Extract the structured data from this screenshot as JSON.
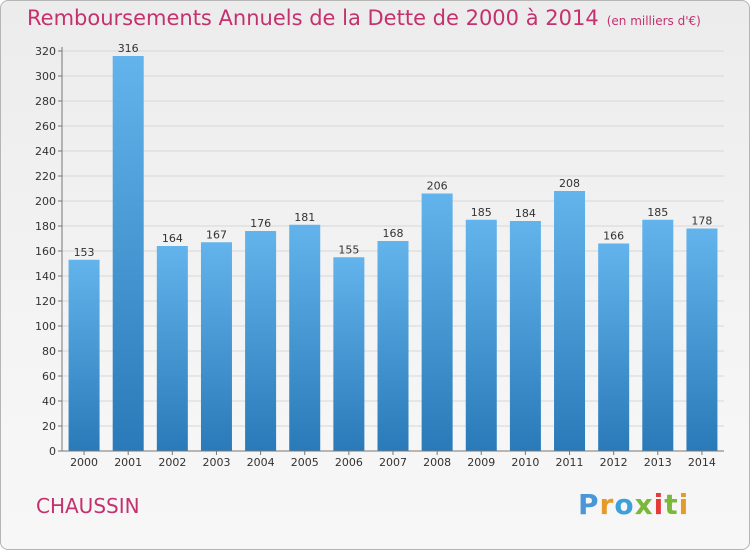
{
  "chart_data": {
    "type": "bar",
    "title": "Remboursements Annuels de la Dette de 2000 à 2014",
    "unit_note": "(en milliers d'€)",
    "categories": [
      "2000",
      "2001",
      "2002",
      "2003",
      "2004",
      "2005",
      "2006",
      "2007",
      "2008",
      "2009",
      "2010",
      "2011",
      "2012",
      "2013",
      "2014"
    ],
    "values": [
      153,
      316,
      164,
      167,
      176,
      181,
      155,
      168,
      206,
      185,
      184,
      208,
      166,
      185,
      178
    ],
    "xlabel": "",
    "ylabel": "",
    "ylim": [
      0,
      320
    ],
    "yticks": [
      0,
      20,
      40,
      60,
      80,
      100,
      120,
      140,
      160,
      180,
      200,
      220,
      240,
      260,
      280,
      300,
      320
    ],
    "grid": true,
    "legend": "none"
  },
  "footer": {
    "commune": "CHAUSSIN",
    "logo_letters": [
      "P",
      "r",
      "o",
      "x",
      "i",
      "t",
      "i"
    ]
  },
  "colors": {
    "title": "#c5306e",
    "bar_top": "#63b3ec",
    "bar_bottom": "#2a7ab9",
    "logo": [
      "#4a97d8",
      "#e69a28",
      "#3da0d8",
      "#7ab83a",
      "#e53a3a",
      "#7ab83a",
      "#e69a28"
    ]
  }
}
